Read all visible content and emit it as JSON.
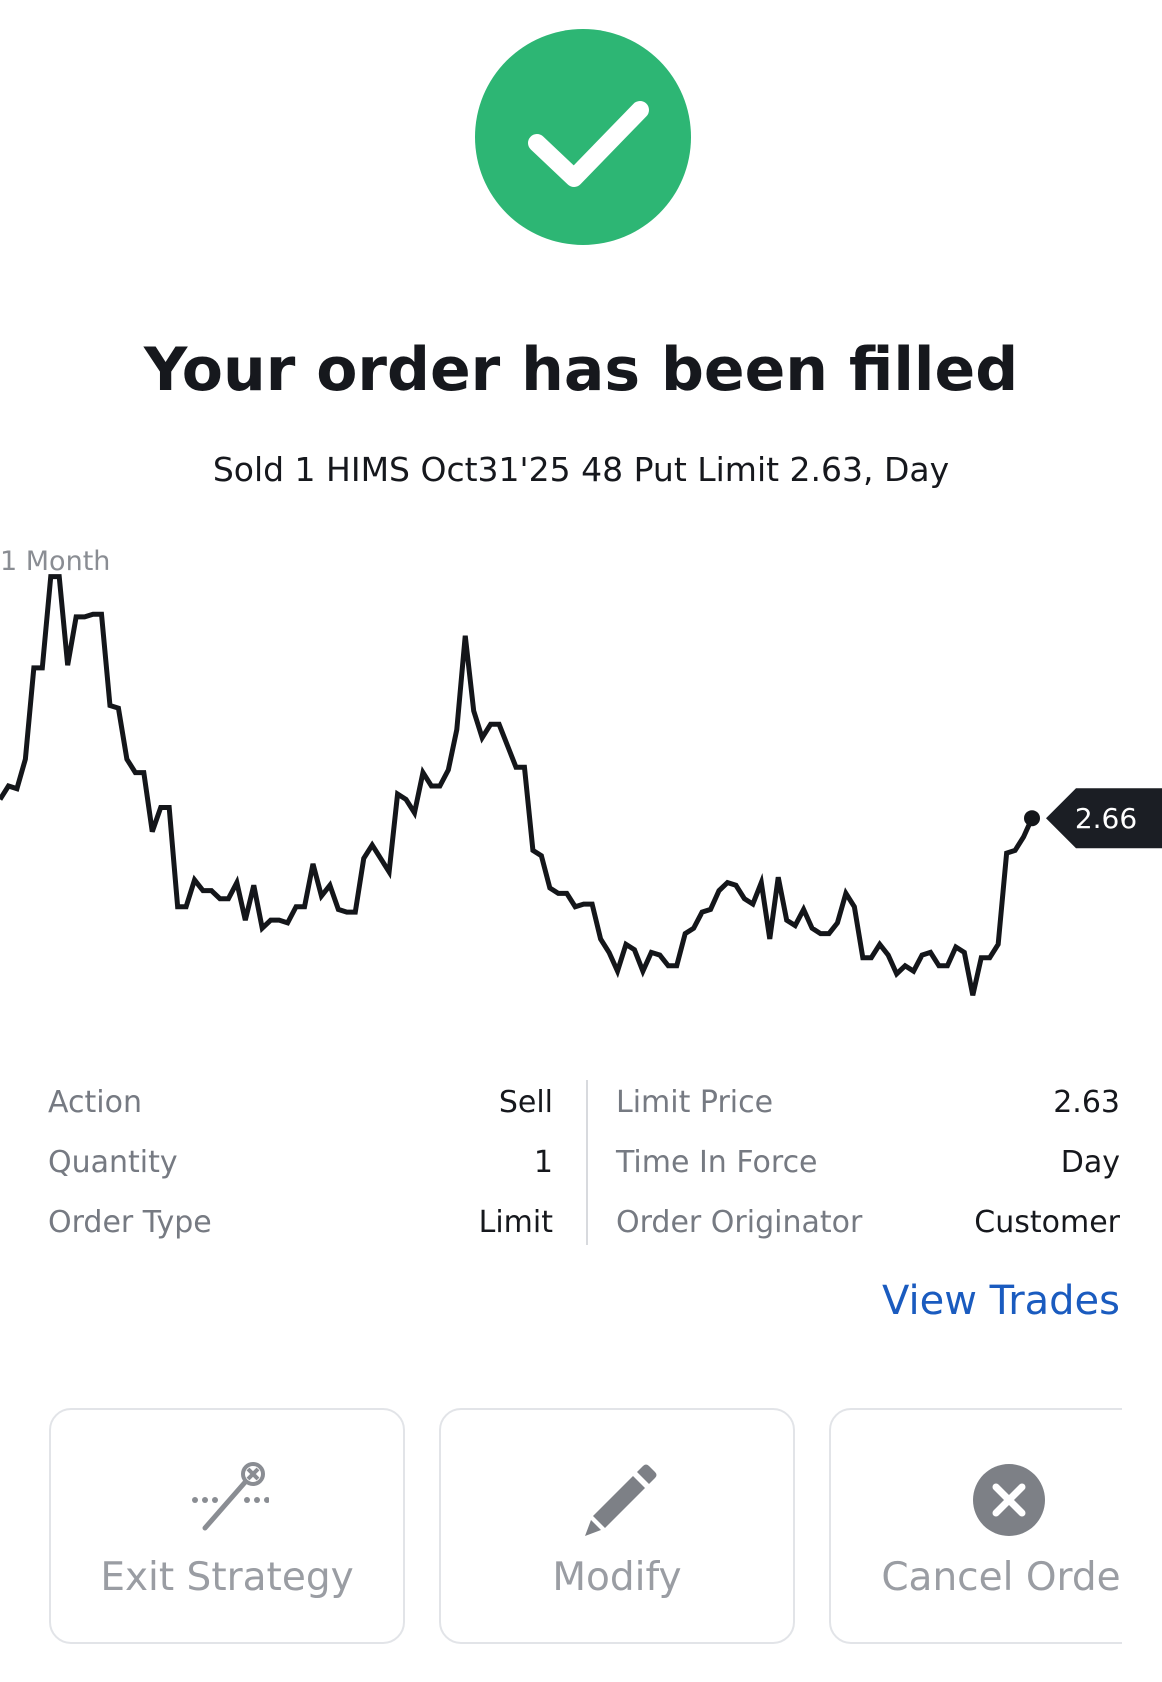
{
  "header": {
    "title": "Your order has been filled",
    "subtitle": "Sold 1 HIMS Oct31'25 48 Put Limit 2.63, Day"
  },
  "chart_data": {
    "type": "line",
    "period": "1 Month",
    "color": "#14161a",
    "values": [
      2.73,
      2.78,
      2.77,
      2.88,
      3.22,
      3.22,
      3.56,
      3.56,
      3.23,
      3.41,
      3.41,
      3.42,
      3.42,
      3.08,
      3.07,
      2.88,
      2.83,
      2.83,
      2.61,
      2.7,
      2.7,
      2.33,
      2.33,
      2.43,
      2.39,
      2.39,
      2.36,
      2.36,
      2.42,
      2.28,
      2.41,
      2.25,
      2.28,
      2.28,
      2.27,
      2.33,
      2.33,
      2.49,
      2.37,
      2.41,
      2.32,
      2.31,
      2.31,
      2.51,
      2.56,
      2.51,
      2.46,
      2.75,
      2.73,
      2.68,
      2.83,
      2.78,
      2.78,
      2.84,
      2.99,
      3.34,
      3.06,
      2.96,
      3.01,
      3.01,
      2.93,
      2.85,
      2.85,
      2.54,
      2.52,
      2.4,
      2.38,
      2.38,
      2.33,
      2.34,
      2.34,
      2.21,
      2.16,
      2.09,
      2.19,
      2.17,
      2.09,
      2.16,
      2.15,
      2.11,
      2.11,
      2.23,
      2.25,
      2.31,
      2.32,
      2.39,
      2.42,
      2.41,
      2.36,
      2.34,
      2.42,
      2.21,
      2.44,
      2.28,
      2.26,
      2.32,
      2.25,
      2.23,
      2.23,
      2.27,
      2.38,
      2.33,
      2.14,
      2.14,
      2.19,
      2.15,
      2.08,
      2.11,
      2.09,
      2.15,
      2.16,
      2.11,
      2.11,
      2.18,
      2.16,
      2.0,
      2.14,
      2.14,
      2.19,
      2.53,
      2.54,
      2.59,
      2.66
    ],
    "ylim": [
      1.99,
      3.57
    ]
  },
  "details": {
    "left": [
      {
        "label": "Action",
        "value": "Sell"
      },
      {
        "label": "Quantity",
        "value": "1"
      },
      {
        "label": "Order Type",
        "value": "Limit"
      }
    ],
    "right": [
      {
        "label": "Limit Price",
        "value": "2.63"
      },
      {
        "label": "Time In Force",
        "value": "Day"
      },
      {
        "label": "Order Originator",
        "value": "Customer"
      }
    ]
  },
  "link": "View Trades",
  "buttons": [
    "Exit Strategy",
    "Modify",
    "Cancel Order"
  ]
}
